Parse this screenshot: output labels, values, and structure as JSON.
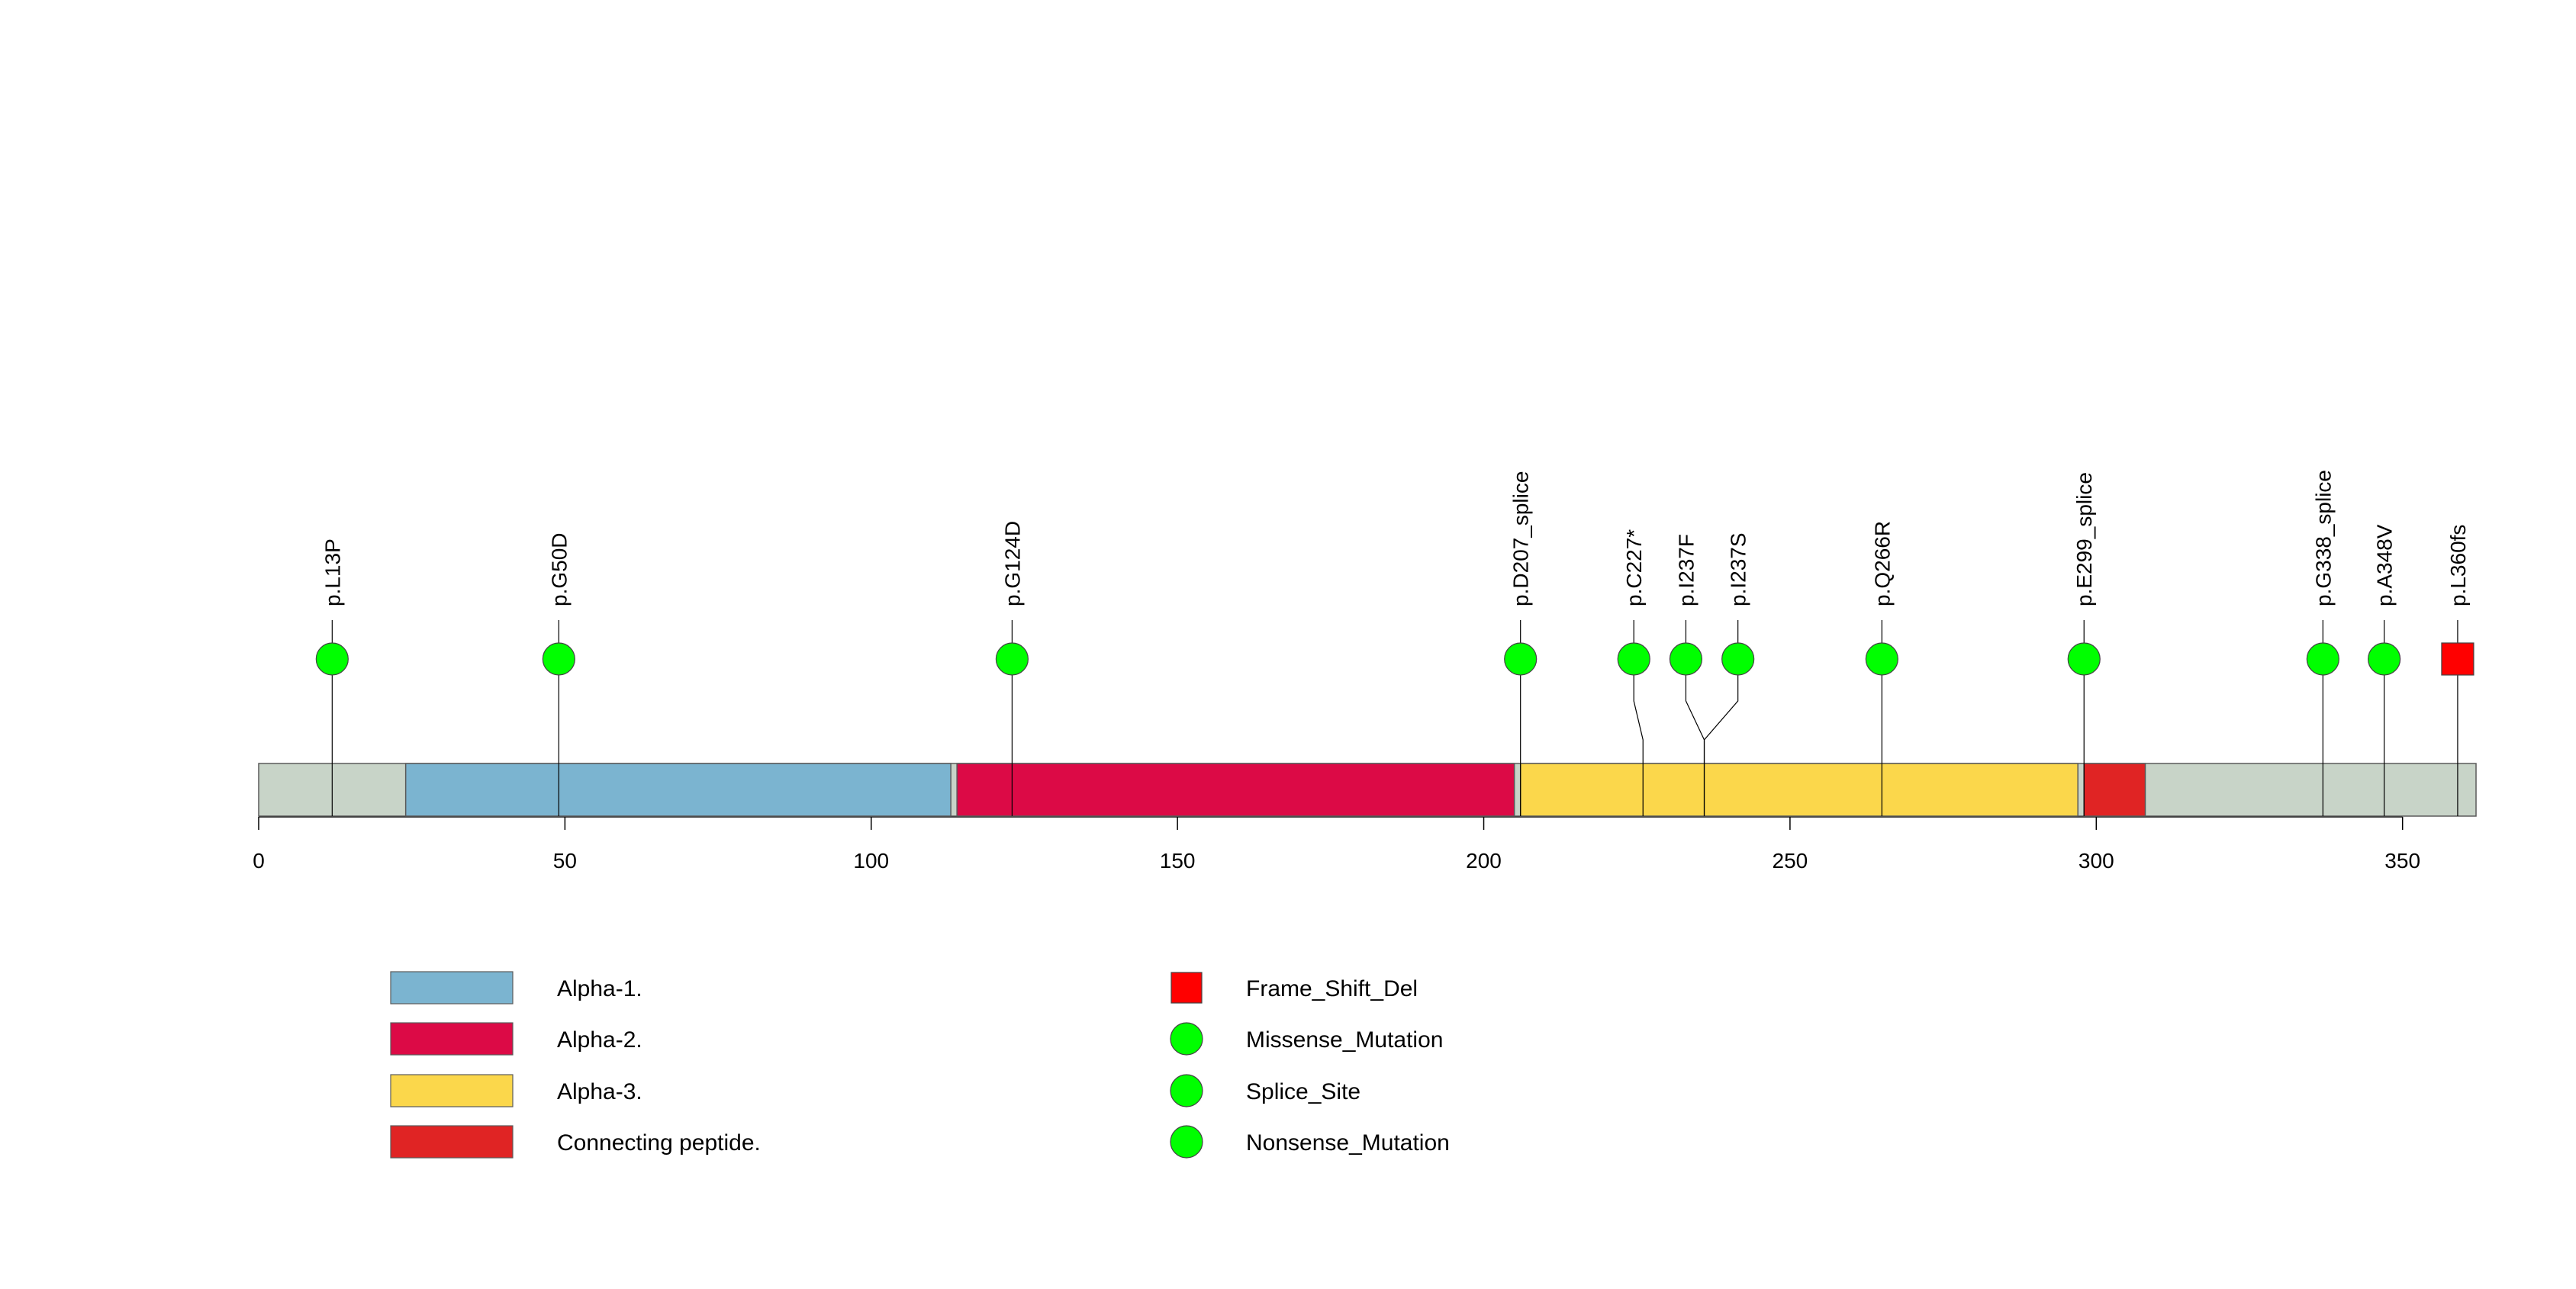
{
  "chart_data": {
    "type": "lollipop",
    "protein_length": 362,
    "xlim": [
      0,
      362
    ],
    "ticks": [
      0,
      50,
      100,
      150,
      200,
      250,
      300,
      350
    ],
    "backbone_color": "#c8d4c8",
    "domains": [
      {
        "name": "Alpha-1.",
        "start": 24,
        "end": 113,
        "color": "#7bb4d0"
      },
      {
        "name": "Alpha-2.",
        "start": 114,
        "end": 205,
        "color": "#dc0a46"
      },
      {
        "name": "Alpha-3.",
        "start": 206,
        "end": 297,
        "color": "#fbd74b"
      },
      {
        "name": "Connecting peptide.",
        "start": 298,
        "end": 308,
        "color": "#e02424"
      }
    ],
    "mutations": [
      {
        "label": "p.L13P",
        "position": 12,
        "marker_position": 12,
        "type": "Missense_Mutation"
      },
      {
        "label": "p.G50D",
        "position": 49,
        "marker_position": 49,
        "type": "Missense_Mutation"
      },
      {
        "label": "p.G124D",
        "position": 123,
        "marker_position": 123,
        "type": "Missense_Mutation"
      },
      {
        "label": "p.D207_splice",
        "position": 206,
        "marker_position": 206,
        "type": "Splice_Site"
      },
      {
        "label": "p.C227*",
        "position": 226,
        "marker_position": 224.5,
        "type": "Nonsense_Mutation"
      },
      {
        "label": "p.I237F",
        "position": 236,
        "marker_position": 233,
        "type": "Missense_Mutation"
      },
      {
        "label": "p.I237S",
        "position": 236,
        "marker_position": 241.5,
        "type": "Missense_Mutation"
      },
      {
        "label": "p.Q266R",
        "position": 265,
        "marker_position": 265,
        "type": "Missense_Mutation"
      },
      {
        "label": "p.E299_splice",
        "position": 298,
        "marker_position": 298,
        "type": "Splice_Site"
      },
      {
        "label": "p.G338_splice",
        "position": 337,
        "marker_position": 337,
        "type": "Splice_Site"
      },
      {
        "label": "p.A348V",
        "position": 347,
        "marker_position": 347,
        "type": "Missense_Mutation"
      },
      {
        "label": "p.L360fs",
        "position": 359,
        "marker_position": 359,
        "type": "Frame_Shift_Del"
      }
    ],
    "legend_domains": [
      "Alpha-1.",
      "Alpha-2.",
      "Alpha-3.",
      "Connecting peptide."
    ],
    "legend_mutations": [
      {
        "name": "Frame_Shift_Del",
        "shape": "square",
        "color": "#ff0000"
      },
      {
        "name": "Missense_Mutation",
        "shape": "circle",
        "color": "#00ff00"
      },
      {
        "name": "Splice_Site",
        "shape": "circle",
        "color": "#00ff00"
      },
      {
        "name": "Nonsense_Mutation",
        "shape": "circle",
        "color": "#00ff00"
      }
    ]
  }
}
